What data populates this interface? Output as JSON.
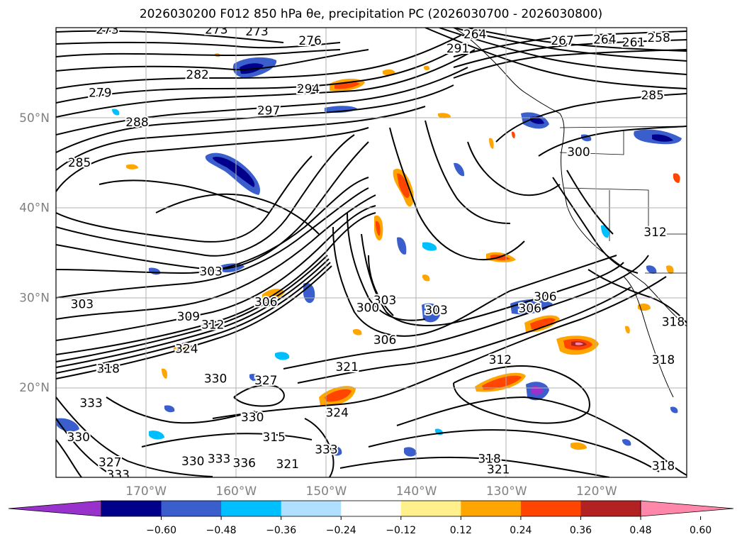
{
  "title": "2026030200 F012 850 hPa θe, precipitation PC (2026030700 - 2026030800)",
  "map": {
    "lon_range": [
      -180,
      -110
    ],
    "lat_range": [
      10,
      60
    ],
    "lon_ticks": [
      {
        "value": -170,
        "label": "170°W"
      },
      {
        "value": -160,
        "label": "160°W"
      },
      {
        "value": -150,
        "label": "150°W"
      },
      {
        "value": -140,
        "label": "140°W"
      },
      {
        "value": -130,
        "label": "130°W"
      },
      {
        "value": -120,
        "label": "120°W"
      }
    ],
    "lat_ticks": [
      {
        "value": 20,
        "label": "20°N"
      },
      {
        "value": 30,
        "label": "30°N"
      },
      {
        "value": 40,
        "label": "40°N"
      },
      {
        "value": 50,
        "label": "50°N"
      }
    ],
    "tick_label_color": "#808080",
    "contour_labels": [
      {
        "text": "273",
        "lon": -174.3,
        "lat": 59.8
      },
      {
        "text": "273",
        "lon": -162.2,
        "lat": 59.8
      },
      {
        "text": "273",
        "lon": -157.7,
        "lat": 59.6
      },
      {
        "text": "276",
        "lon": -151.8,
        "lat": 58.6
      },
      {
        "text": "264",
        "lon": -133.5,
        "lat": 59.3
      },
      {
        "text": "267",
        "lon": -123.8,
        "lat": 58.6
      },
      {
        "text": "264",
        "lon": -119.1,
        "lat": 58.7
      },
      {
        "text": "261",
        "lon": -115.9,
        "lat": 58.4
      },
      {
        "text": "258",
        "lon": -113.1,
        "lat": 58.9
      },
      {
        "text": "291",
        "lon": -135.4,
        "lat": 57.7
      },
      {
        "text": "282",
        "lon": -164.3,
        "lat": 54.8
      },
      {
        "text": "294",
        "lon": -152.0,
        "lat": 53.2
      },
      {
        "text": "279",
        "lon": -175.1,
        "lat": 52.8
      },
      {
        "text": "297",
        "lon": -156.4,
        "lat": 50.8
      },
      {
        "text": "285",
        "lon": -113.8,
        "lat": 52.5
      },
      {
        "text": "288",
        "lon": -171.0,
        "lat": 49.5
      },
      {
        "text": "285",
        "lon": -177.4,
        "lat": 45.0
      },
      {
        "text": "300",
        "lon": -122.0,
        "lat": 46.2
      },
      {
        "text": "312",
        "lon": -113.5,
        "lat": 37.3
      },
      {
        "text": "303",
        "lon": -162.8,
        "lat": 32.9
      },
      {
        "text": "306",
        "lon": -156.7,
        "lat": 29.5
      },
      {
        "text": "303",
        "lon": -143.5,
        "lat": 29.7
      },
      {
        "text": "300",
        "lon": -145.4,
        "lat": 28.9
      },
      {
        "text": "303",
        "lon": -137.8,
        "lat": 28.6
      },
      {
        "text": "306",
        "lon": -125.7,
        "lat": 30.1
      },
      {
        "text": "306",
        "lon": -127.4,
        "lat": 28.8
      },
      {
        "text": "309",
        "lon": -165.3,
        "lat": 27.9
      },
      {
        "text": "312",
        "lon": -162.6,
        "lat": 27.0
      },
      {
        "text": "303",
        "lon": -177.1,
        "lat": 29.3
      },
      {
        "text": "306",
        "lon": -143.5,
        "lat": 25.3
      },
      {
        "text": "324",
        "lon": -165.5,
        "lat": 24.3
      },
      {
        "text": "318",
        "lon": -174.2,
        "lat": 22.1
      },
      {
        "text": "321",
        "lon": -147.7,
        "lat": 22.3
      },
      {
        "text": "312",
        "lon": -130.7,
        "lat": 23.1
      },
      {
        "text": "330",
        "lon": -162.3,
        "lat": 21.0
      },
      {
        "text": "327",
        "lon": -156.7,
        "lat": 20.8
      },
      {
        "text": "324",
        "lon": -148.8,
        "lat": 17.2
      },
      {
        "text": "333",
        "lon": -176.1,
        "lat": 18.3
      },
      {
        "text": "330",
        "lon": -158.2,
        "lat": 16.7
      },
      {
        "text": "315",
        "lon": -155.8,
        "lat": 14.5
      },
      {
        "text": "330",
        "lon": -177.5,
        "lat": 14.5
      },
      {
        "text": "327",
        "lon": -174.0,
        "lat": 11.7
      },
      {
        "text": "333",
        "lon": -173.1,
        "lat": 10.3
      },
      {
        "text": "330",
        "lon": -164.8,
        "lat": 11.8
      },
      {
        "text": "333",
        "lon": -161.9,
        "lat": 12.1
      },
      {
        "text": "336",
        "lon": -159.1,
        "lat": 11.6
      },
      {
        "text": "321",
        "lon": -154.3,
        "lat": 11.5
      },
      {
        "text": "333",
        "lon": -150.0,
        "lat": 13.1
      },
      {
        "text": "318",
        "lon": -131.9,
        "lat": 12.1
      },
      {
        "text": "321",
        "lon": -130.9,
        "lat": 10.9
      },
      {
        "text": "318",
        "lon": -112.6,
        "lat": 11.3
      },
      {
        "text": "318",
        "lon": -112.6,
        "lat": 23.1
      },
      {
        "text": "318",
        "lon": -111.5,
        "lat": 27.3
      }
    ]
  },
  "colorbar": {
    "colors": [
      "#9932cc",
      "#00008b",
      "#3a5fcd",
      "#00bfff",
      "#b0e0ff",
      "#ffffff",
      "#fff08c",
      "#ffa500",
      "#ff4500",
      "#b22222",
      "#ff88aa"
    ],
    "tick_labels": [
      "−0.60",
      "−0.48",
      "−0.36",
      "−0.24",
      "−0.12",
      "0.12",
      "0.24",
      "0.36",
      "0.48",
      "0.60"
    ]
  }
}
